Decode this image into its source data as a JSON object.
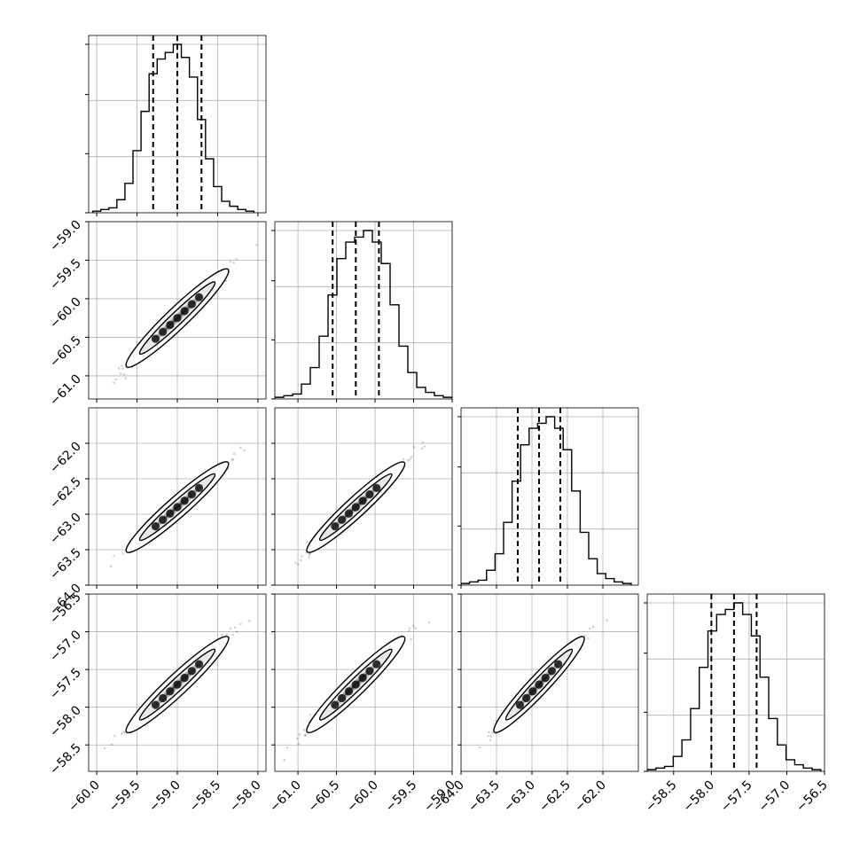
{
  "chart_data": {
    "type": "corner",
    "title": "",
    "parameters": [
      {
        "index": 0,
        "range": [
          -60.1,
          -57.9
        ],
        "tick_values": [
          -60.0,
          -59.5,
          -59.0,
          -58.5,
          -58.0
        ],
        "tick_labels": [
          "−60.0",
          "−59.5",
          "−59.0",
          "−58.5",
          "−58.0"
        ],
        "quantiles": [
          -59.3,
          -59.0,
          -58.7
        ],
        "hist_bins": [
          -60.05,
          -59.95,
          -59.85,
          -59.75,
          -59.65,
          -59.55,
          -59.45,
          -59.35,
          -59.25,
          -59.15,
          -59.05,
          -58.95,
          -58.85,
          -58.75,
          -58.65,
          -58.55,
          -58.45,
          -58.35,
          -58.25,
          -58.15,
          -58.05
        ],
        "hist_counts": [
          1,
          2,
          3,
          8,
          18,
          38,
          62,
          85,
          94,
          98,
          103,
          95,
          83,
          57,
          33,
          16,
          7,
          4,
          2,
          1
        ]
      },
      {
        "index": 1,
        "range": [
          -61.3,
          -59.0
        ],
        "tick_values": [
          -61.0,
          -60.5,
          -60.0,
          -59.5,
          -59.0
        ],
        "tick_labels": [
          "−61.0",
          "−60.5",
          "−60.0",
          "−59.5",
          "−59.0"
        ],
        "quantiles": [
          -60.55,
          -60.25,
          -59.95
        ],
        "hist_bins": [
          -61.3,
          -61.185,
          -61.07,
          -60.955,
          -60.84,
          -60.725,
          -60.61,
          -60.495,
          -60.38,
          -60.265,
          -60.15,
          -60.035,
          -59.92,
          -59.805,
          -59.69,
          -59.575,
          -59.46,
          -59.345,
          -59.23,
          -59.115,
          -59.0
        ],
        "hist_counts": [
          1,
          2,
          3,
          9,
          19,
          38,
          63,
          85,
          95,
          98,
          102,
          95,
          82,
          57,
          32,
          16,
          7,
          4,
          2,
          1
        ]
      },
      {
        "index": 2,
        "range": [
          -64.0,
          -61.5
        ],
        "tick_values": [
          -64.0,
          -63.5,
          -63.0,
          -62.5,
          -62.0
        ],
        "tick_labels": [
          "−64.0",
          "−63.5",
          "−63.0",
          "−62.5",
          "−62.0"
        ],
        "quantiles": [
          -63.2,
          -62.9,
          -62.6
        ],
        "hist_bins": [
          -64.0,
          -63.88,
          -63.76,
          -63.64,
          -63.52,
          -63.4,
          -63.28,
          -63.16,
          -63.04,
          -62.92,
          -62.8,
          -62.68,
          -62.56,
          -62.44,
          -62.32,
          -62.2,
          -62.08,
          -61.96,
          -61.84,
          -61.72,
          -61.6
        ],
        "hist_counts": [
          1,
          2,
          3,
          9,
          19,
          38,
          63,
          85,
          95,
          98,
          102,
          95,
          82,
          57,
          32,
          16,
          7,
          4,
          2,
          1
        ]
      },
      {
        "index": 3,
        "range": [
          -58.85,
          -56.5
        ],
        "tick_values": [
          -58.5,
          -58.0,
          -57.5,
          -57.0,
          -56.5
        ],
        "tick_labels": [
          "−58.5",
          "−58.0",
          "−57.5",
          "−57.0",
          "−56.5"
        ],
        "quantiles": [
          -58.0,
          -57.7,
          -57.4
        ],
        "hist_bins": [
          -58.85,
          -58.735,
          -58.62,
          -58.505,
          -58.39,
          -58.275,
          -58.16,
          -58.045,
          -57.93,
          -57.815,
          -57.7,
          -57.585,
          -57.47,
          -57.355,
          -57.24,
          -57.125,
          -57.01,
          -56.895,
          -56.78,
          -56.665,
          -56.55
        ],
        "hist_counts": [
          1,
          2,
          3,
          9,
          19,
          38,
          63,
          85,
          95,
          98,
          102,
          95,
          82,
          57,
          32,
          16,
          7,
          4,
          2,
          1
        ]
      }
    ],
    "y_tick_labels_2d": {
      "row1": [
        "−59.0",
        "−59.5",
        "−60.0",
        "−60.5",
        "−61.0"
      ],
      "row2": [
        "−62.0",
        "−62.5",
        "−63.0",
        "−63.5",
        "−64.0"
      ],
      "row3": [
        "−56.5",
        "−57.0",
        "−57.5",
        "−58.0",
        "−58.5"
      ]
    },
    "grid": true,
    "legend": "none",
    "colors": {
      "line": "#000000",
      "grid": "#b0b0b0",
      "samples": "#000000"
    }
  }
}
